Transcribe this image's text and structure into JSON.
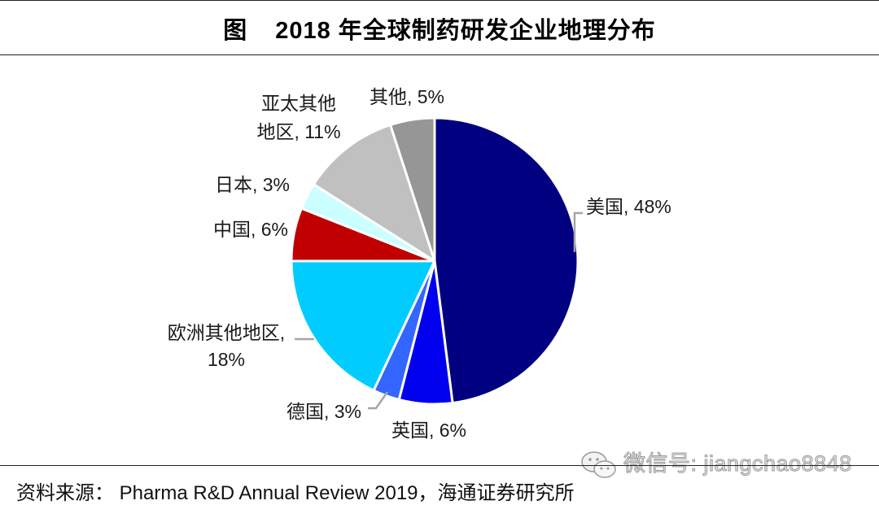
{
  "header": {
    "figure_label": "图",
    "title": "2018 年全球制药研发企业地理分布"
  },
  "chart_data": {
    "type": "pie",
    "title": "2018 年全球制药研发企业地理分布",
    "start": "12 o'clock, clockwise",
    "legend": "none (data labels beside slices)",
    "slices": [
      {
        "name": "美国",
        "value": 48,
        "label": "美国, 48%",
        "color": "#000080"
      },
      {
        "name": "英国",
        "value": 6,
        "label": "英国, 6%",
        "color": "#0000EE"
      },
      {
        "name": "德国",
        "value": 3,
        "label": "德国, 3%",
        "color": "#3366FF"
      },
      {
        "name": "欧洲其他地区",
        "value": 18,
        "label_lines": [
          "欧洲其他地区,",
          "18%"
        ],
        "color": "#00CCFF"
      },
      {
        "name": "中国",
        "value": 6,
        "label": "中国, 6%",
        "color": "#C00000"
      },
      {
        "name": "日本",
        "value": 3,
        "label": "日本, 3%",
        "color": "#CCFFFF"
      },
      {
        "name": "亚太其他地区",
        "value": 11,
        "label_lines": [
          "亚太其他",
          "地区, 11%"
        ],
        "color": "#C0C0C0"
      },
      {
        "name": "其他",
        "value": 5,
        "label": "其他, 5%",
        "color": "#969696"
      }
    ]
  },
  "footer": {
    "source": "资料来源： Pharma R&D Annual Review 2019，海通证券研究所",
    "watermark": "微信号: jiangchao8848"
  }
}
